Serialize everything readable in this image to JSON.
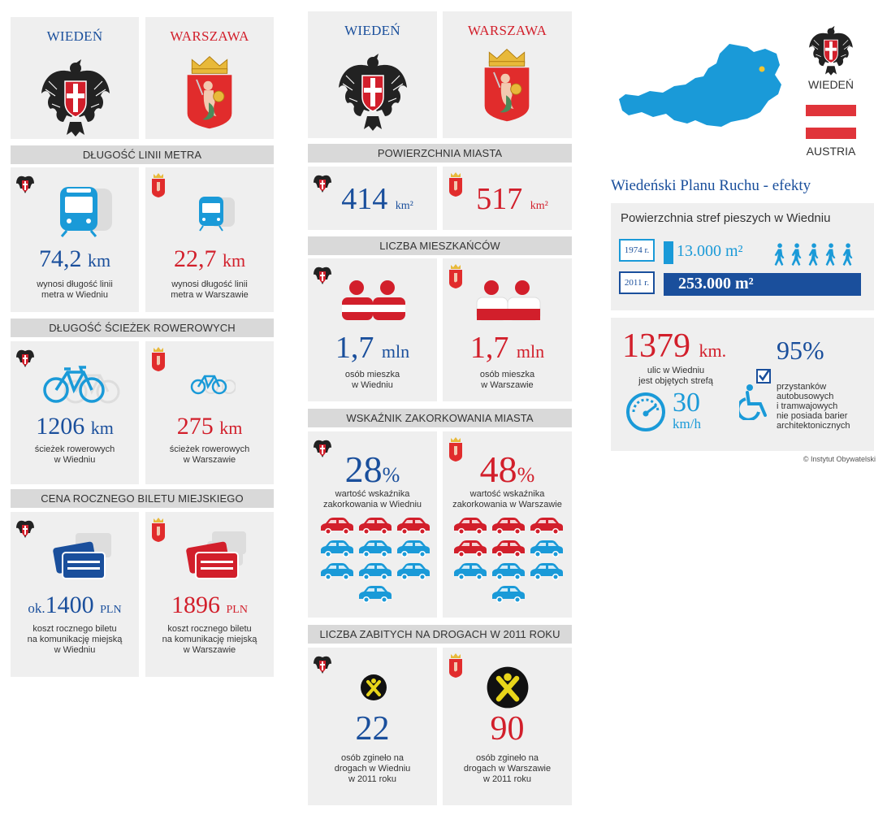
{
  "cities": {
    "vienna": "WIEDEŃ",
    "warsaw": "WARSZAWA"
  },
  "colors": {
    "vienna": "#1a4f9c",
    "warsaw": "#d21f2b",
    "cyan": "#1a9ad8",
    "panel": "#efefef",
    "header": "#d9d9d9"
  },
  "col1": {
    "metro": {
      "header": "DŁUGOŚĆ LINII METRA",
      "vienna": {
        "value": "74,2",
        "unit": "km",
        "caption": [
          "wynosi długość linii",
          "metra w Wiedniu"
        ]
      },
      "warsaw": {
        "value": "22,7",
        "unit": "km",
        "caption": [
          "wynosi długość linii",
          "metra w Warszawie"
        ]
      }
    },
    "bike": {
      "header": "DŁUGOŚĆ ŚCIEŻEK ROWEROWYCH",
      "vienna": {
        "value": "1206",
        "unit": "km",
        "caption": [
          "ścieżek rowerowych",
          "w Wiedniu"
        ]
      },
      "warsaw": {
        "value": "275",
        "unit": "km",
        "caption": [
          "ścieżek rowerowych",
          "w Warszawie"
        ]
      }
    },
    "ticket": {
      "header": "CENA ROCZNEGO BILETU MIEJSKIEGO",
      "vienna": {
        "prefix": "ok.",
        "value": "1400",
        "unit": "PLN",
        "caption": [
          "koszt rocznego biletu",
          "na komunikację miejską",
          "w Wiedniu"
        ]
      },
      "warsaw": {
        "value": "1896",
        "unit": "PLN",
        "caption": [
          "koszt rocznego biletu",
          "na komunikację miejską",
          "w Warszawie"
        ]
      }
    }
  },
  "col2": {
    "area": {
      "header": "POWIERZCHNIA MIASTA",
      "vienna": {
        "value": "414",
        "unit": "km²"
      },
      "warsaw": {
        "value": "517",
        "unit": "km²"
      }
    },
    "population": {
      "header": "LICZBA MIESZKAŃCÓW",
      "vienna": {
        "value": "1,7",
        "unit": "mln",
        "caption": [
          "osób mieszka",
          "w Wiedniu"
        ]
      },
      "warsaw": {
        "value": "1,7",
        "unit": "mln",
        "caption": [
          "osób mieszka",
          "w Warszawie"
        ]
      }
    },
    "congestion": {
      "header": "WSKAŹNIK ZAKORKOWANIA MIASTA",
      "vienna": {
        "value": "28",
        "unit": "%",
        "caption": [
          "wartość wskaźnika",
          "zakorkowania w Wiedniu"
        ],
        "red_cars": 3,
        "total_cars": 10
      },
      "warsaw": {
        "value": "48",
        "unit": "%",
        "caption": [
          "wartość wskaźnika",
          "zakorkowania w Warszawie"
        ],
        "red_cars": 5,
        "total_cars": 10
      }
    },
    "deaths": {
      "header": "LICZBA ZABITYCH NA DROGACH W 2011 ROKU",
      "vienna": {
        "value": "22",
        "caption": [
          "osób zgineło na",
          "drogach w Wiedniu",
          "w 2011 roku"
        ]
      },
      "warsaw": {
        "value": "90",
        "caption": [
          "osób zgineło na",
          "drogach w Warszawie",
          "w 2011 roku"
        ]
      }
    }
  },
  "col3": {
    "city_label": "WIEDEŃ",
    "country_label": "AUSTRIA",
    "title": "Wiedeński Planu Ruchu - efekty",
    "pedestrian": {
      "heading": "Powierzchnia stref pieszych w Wiedniu",
      "rows": [
        {
          "year": "1974 r.",
          "value": "13.000 m²",
          "area_m2": 13000
        },
        {
          "year": "2011 r.",
          "value": "253.000 m²",
          "area_m2": 253000
        }
      ]
    },
    "streets": {
      "value": "1379",
      "unit": "km.",
      "caption": [
        "ulic w Wiedniu",
        "jest objętych strefą"
      ],
      "speed": "30",
      "speed_unit": "km/h"
    },
    "stops": {
      "value": "95%",
      "caption": [
        "przystanków",
        "autobusowych",
        "i tramwajowych",
        "nie posiada barier",
        "architektonicznych"
      ]
    },
    "credit": "Instytut Obywatelski"
  }
}
